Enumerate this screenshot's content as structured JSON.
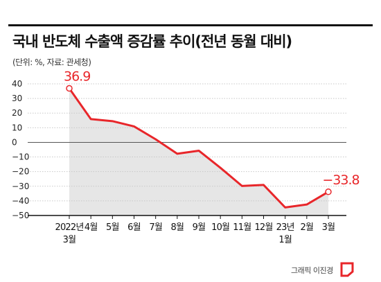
{
  "header": {
    "title": "국내 반도체 수출액 증감률 추이(전년 동월 대비)",
    "subtitle": "(단위: %, 자료: 관세청)"
  },
  "credit": "그래픽 이진경",
  "colors": {
    "line": "#e8262a",
    "area": "#e6e6e6",
    "grid": "#c8c8c8",
    "axis": "#111111"
  },
  "chart_data": {
    "type": "area",
    "x": [
      "2022년 3월",
      "4월",
      "5월",
      "6월",
      "7월",
      "8월",
      "9월",
      "10월",
      "11월",
      "12월",
      "23년 1월",
      "2월",
      "3월"
    ],
    "x_tick_lines": [
      [
        "2022년",
        "3월"
      ],
      [
        "4월"
      ],
      [
        "5월"
      ],
      [
        "6월"
      ],
      [
        "7월"
      ],
      [
        "8월"
      ],
      [
        "9월"
      ],
      [
        "10월"
      ],
      [
        "11월"
      ],
      [
        "12월"
      ],
      [
        "23년",
        "1월"
      ],
      [
        "2월"
      ],
      [
        "3월"
      ]
    ],
    "series": [
      {
        "values": [
          36.9,
          15.9,
          14.5,
          10.9,
          2.1,
          -7.8,
          -5.7,
          -17.4,
          -29.8,
          -29.1,
          -44.5,
          -42.5,
          -33.8
        ]
      }
    ],
    "yticks": [
      40,
      30,
      20,
      10,
      0,
      -10,
      -20,
      -30,
      -40,
      -50
    ],
    "ytick_labels": [
      "40",
      "30",
      "20",
      "10",
      "0",
      "−10",
      "−20",
      "−30",
      "−40",
      "−50"
    ],
    "ylim": [
      -50,
      40
    ],
    "annotations": [
      {
        "index": 0,
        "text": "36.9"
      },
      {
        "index": 12,
        "text": "−33.8"
      }
    ],
    "grid": true
  }
}
